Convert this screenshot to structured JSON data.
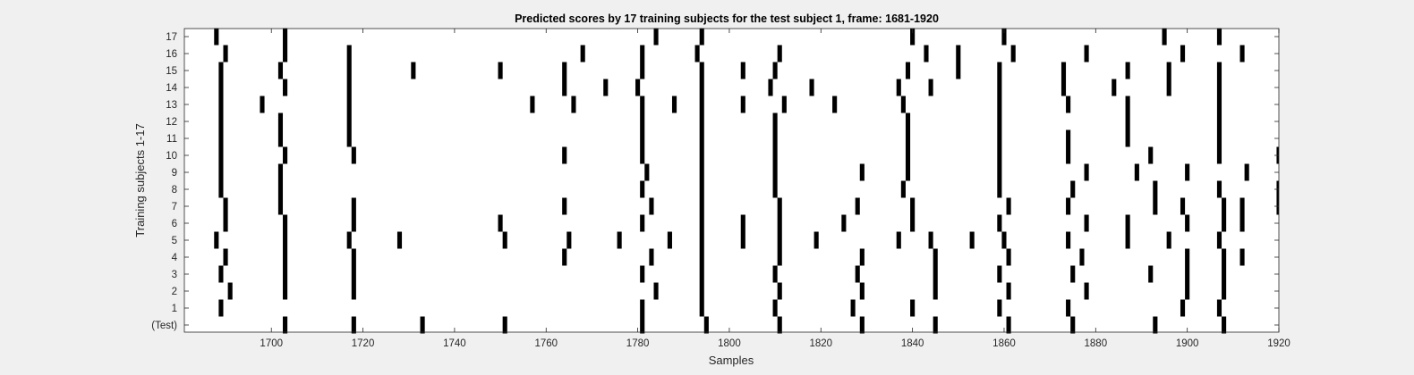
{
  "chart_data": {
    "type": "raster",
    "title": "Predicted scores by 17 training subjects for the test subject 1, frame: 1681-1920",
    "xlabel": "Samples",
    "ylabel": "Training subjects 1-17",
    "xlim": [
      1681,
      1920
    ],
    "xticks": [
      1700,
      1720,
      1740,
      1760,
      1780,
      1800,
      1820,
      1840,
      1860,
      1880,
      1900,
      1920
    ],
    "yticks": [
      "(Test)",
      "1",
      "2",
      "3",
      "4",
      "5",
      "6",
      "7",
      "8",
      "9",
      "10",
      "11",
      "12",
      "13",
      "14",
      "15",
      "16",
      "17"
    ],
    "mark_color": "#000000",
    "rows": [
      {
        "label": "(Test)",
        "x": [
          1703,
          1718,
          1733,
          1751,
          1781,
          1795,
          1811,
          1829,
          1845,
          1861,
          1875,
          1893,
          1908
        ]
      },
      {
        "label": "1",
        "x": [
          1689,
          1781,
          1794,
          1810,
          1827,
          1840,
          1859,
          1874,
          1899,
          1907
        ]
      },
      {
        "label": "2",
        "x": [
          1691,
          1703,
          1718,
          1784,
          1794,
          1811,
          1829,
          1845,
          1861,
          1878,
          1900,
          1908
        ]
      },
      {
        "label": "3",
        "x": [
          1689,
          1703,
          1718,
          1781,
          1794,
          1810,
          1828,
          1845,
          1859,
          1875,
          1892,
          1900,
          1908
        ]
      },
      {
        "label": "4",
        "x": [
          1690,
          1703,
          1718,
          1764,
          1783,
          1794,
          1811,
          1829,
          1845,
          1861,
          1877,
          1900,
          1908,
          1912
        ]
      },
      {
        "label": "5",
        "x": [
          1688,
          1703,
          1717,
          1728,
          1751,
          1765,
          1776,
          1787,
          1794,
          1803,
          1811,
          1819,
          1837,
          1844,
          1853,
          1860,
          1874,
          1887,
          1896,
          1907
        ]
      },
      {
        "label": "6",
        "x": [
          1690,
          1703,
          1718,
          1750,
          1781,
          1794,
          1803,
          1811,
          1825,
          1840,
          1859,
          1878,
          1887,
          1900,
          1908,
          1912
        ]
      },
      {
        "label": "7",
        "x": [
          1690,
          1702,
          1718,
          1764,
          1783,
          1794,
          1811,
          1828,
          1840,
          1861,
          1874,
          1893,
          1899,
          1908,
          1912,
          1920
        ]
      },
      {
        "label": "8",
        "x": [
          1689,
          1702,
          1781,
          1794,
          1810,
          1838,
          1859,
          1875,
          1893,
          1907,
          1920
        ]
      },
      {
        "label": "9",
        "x": [
          1689,
          1702,
          1782,
          1794,
          1810,
          1829,
          1839,
          1859,
          1878,
          1889,
          1900,
          1913
        ]
      },
      {
        "label": "10",
        "x": [
          1689,
          1703,
          1718,
          1764,
          1781,
          1794,
          1810,
          1839,
          1859,
          1874,
          1892,
          1907,
          1920
        ]
      },
      {
        "label": "11",
        "x": [
          1689,
          1702,
          1717,
          1781,
          1794,
          1810,
          1839,
          1859,
          1874,
          1887,
          1907
        ]
      },
      {
        "label": "12",
        "x": [
          1689,
          1702,
          1717,
          1781,
          1794,
          1810,
          1839,
          1859,
          1887,
          1907
        ]
      },
      {
        "label": "13",
        "x": [
          1689,
          1698,
          1717,
          1757,
          1766,
          1781,
          1788,
          1794,
          1803,
          1812,
          1823,
          1838,
          1859,
          1874,
          1887,
          1907
        ]
      },
      {
        "label": "14",
        "x": [
          1689,
          1703,
          1717,
          1764,
          1773,
          1780,
          1794,
          1809,
          1818,
          1837,
          1844,
          1859,
          1873,
          1884,
          1896,
          1907
        ]
      },
      {
        "label": "15",
        "x": [
          1689,
          1702,
          1717,
          1731,
          1750,
          1764,
          1781,
          1794,
          1803,
          1810,
          1839,
          1850,
          1859,
          1873,
          1887,
          1896,
          1907
        ]
      },
      {
        "label": "16",
        "x": [
          1690,
          1703,
          1717,
          1768,
          1781,
          1793,
          1811,
          1843,
          1850,
          1862,
          1878,
          1899,
          1912
        ]
      },
      {
        "label": "17",
        "x": [
          1688,
          1703,
          1784,
          1794,
          1840,
          1860,
          1895,
          1907
        ]
      }
    ]
  }
}
